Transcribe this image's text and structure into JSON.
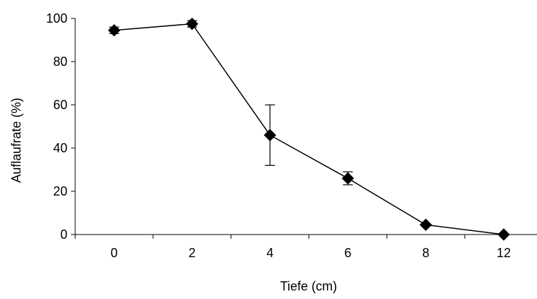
{
  "chart_data": {
    "type": "line",
    "xlabel": "Tiefe (cm)",
    "ylabel": "Auflaufrate (%)",
    "categories": [
      "0",
      "2",
      "4",
      "6",
      "8",
      "12"
    ],
    "ylim": [
      0,
      100
    ],
    "yticks": [
      0,
      20,
      40,
      60,
      80,
      100
    ],
    "grid": false,
    "marker": "diamond",
    "series": [
      {
        "values": [
          94.5,
          97.5,
          46,
          26,
          4.5,
          0
        ],
        "error": [
          1.5,
          1.5,
          14,
          3,
          0.5,
          0
        ]
      }
    ],
    "colors": {
      "line": "#000000",
      "marker": "#000000"
    }
  }
}
